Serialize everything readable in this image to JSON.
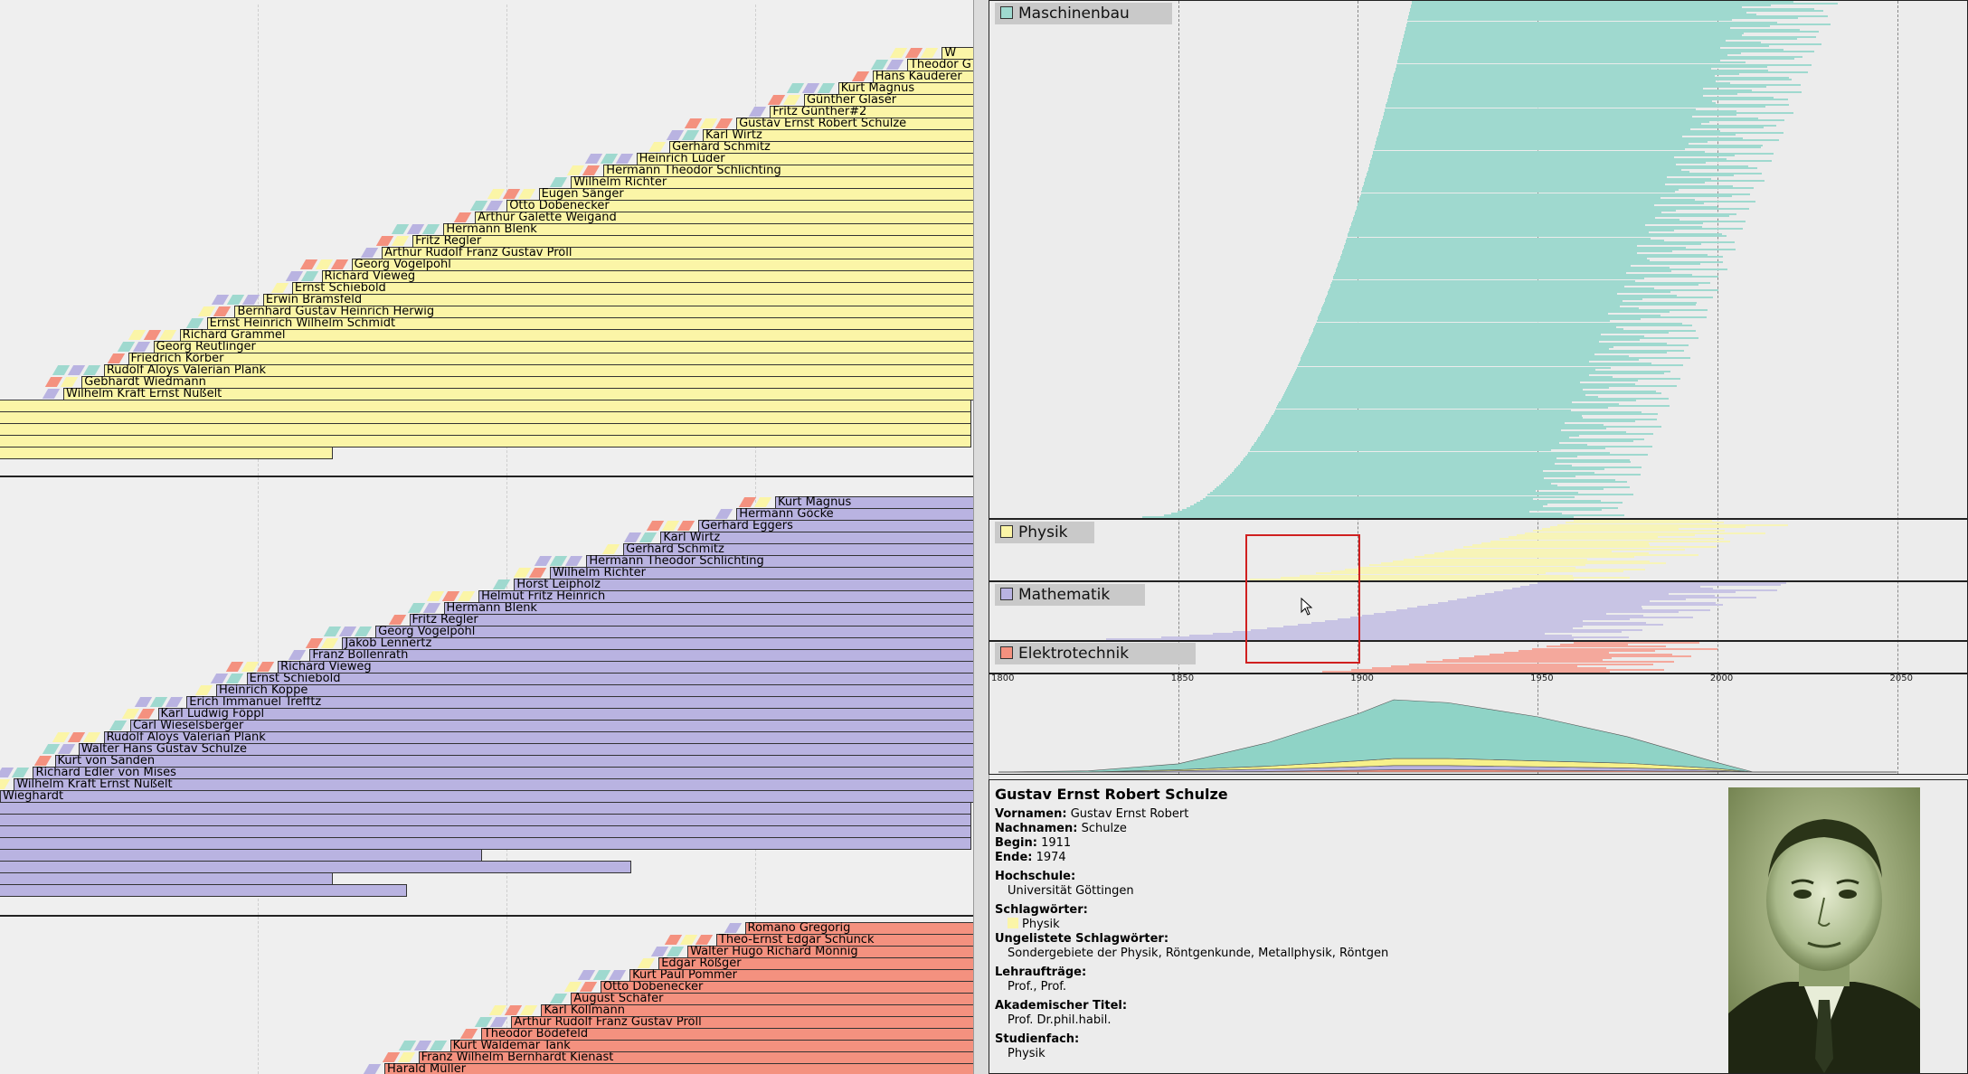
{
  "panels": [
    {
      "key": "physik",
      "color": "#fbf5a7",
      "people": [
        "Wilhelm Kraft Ernst Nußelt",
        "Gebhardt Wiedmann",
        "Rudolf Aloys Valerian Plank",
        "Friedrich Körber",
        "Georg Reutlinger",
        "Richard Grammel",
        "Ernst Heinrich Wilhelm Schmidt",
        "Bernhard Gustav Heinrich Herwig",
        "Erwin Bramsfeld",
        "Ernst Schiebold",
        "Richard Vieweg",
        "Georg Vogelpohl",
        "Arthur Rudolf Franz Gustav Pröll",
        "Fritz Regler",
        "Hermann Blenk",
        "Arthur Galette Weigand",
        "Otto Dobenecker",
        "Eugen Sänger",
        "Wilhelm Richter",
        "Hermann Theodor Schlichting",
        "Heinrich Lüder",
        "Gerhard Schmitz",
        "Karl Wirtz",
        "Gustav Ernst Robert Schulze",
        "Fritz Günther#2",
        "Günther Glaser",
        "Kurt Magnus",
        "Hans Kauderer",
        "Theodor G",
        "W"
      ]
    },
    {
      "key": "mathematik",
      "color": "#b9b3e1",
      "people": [
        "Wieghardt",
        "Wilhelm Kraft Ernst Nußelt",
        "Richard Edler von Mises",
        "Kurt von Sanden",
        "Walter Hans Gustav Schulze",
        "Rudolf Aloys Valerian Plank",
        "Carl Wieselsberger",
        "Karl Ludwig Föppl",
        "Erich Immanuel Trefftz",
        "Heinrich Koppe",
        "Ernst Schiebold",
        "Richard Vieweg",
        "Franz Bollenrath",
        "Jakob Lennertz",
        "Georg Vogelpohl",
        "Fritz Regler",
        "Hermann Blenk",
        "Helmut Fritz Heinrich",
        "Horst Leipholz",
        "Wilhelm Richter",
        "Hermann Theodor Schlichting",
        "Gerhard Schmitz",
        "Karl Wirtz",
        "Gerhard Eggers",
        "Hermann Göcke",
        "Kurt Magnus"
      ]
    },
    {
      "key": "elektrotechnik",
      "color": "#f4917f",
      "people": [
        "Harald Müller",
        "Franz Wilhelm Bernhardt Kienast",
        "Kurt Waldemar Tank",
        "Theodor Bödefeld",
        "Arthur Rudolf Franz Gustav Pröll",
        "Karl Kollmann",
        "August Schäfer",
        "Otto Dobenecker",
        "Kurt Paul Pommer",
        "Edgar Rößger",
        "Walter Hugo Richard Mönnig",
        "Theo-Ernst Edgar Schunck",
        "Romano Gregorig"
      ]
    }
  ],
  "overview": {
    "bands": [
      {
        "label": "Maschinenbau",
        "color": "#9fd9cf"
      },
      {
        "label": "Physik",
        "color": "#f7f4b8"
      },
      {
        "label": "Mathematik",
        "color": "#c8c4e4"
      },
      {
        "label": "Elektrotechnik",
        "color": "#f4a89c"
      }
    ],
    "axis_ticks": [
      "1800",
      "1850",
      "1900",
      "1950",
      "2000",
      "2050"
    ]
  },
  "chart_data": {
    "type": "area",
    "title": "",
    "xlabel": "",
    "ylabel": "",
    "x": [
      1800,
      1825,
      1850,
      1875,
      1900,
      1910,
      1925,
      1950,
      1975,
      2000,
      2010,
      2050
    ],
    "xlim": [
      1800,
      2070
    ],
    "series": [
      {
        "name": "Maschinenbau",
        "values": [
          0,
          2,
          10,
          40,
          80,
          100,
          95,
          75,
          45,
          10,
          0,
          0
        ]
      },
      {
        "name": "Physik",
        "values": [
          0,
          0,
          2,
          5,
          10,
          12,
          12,
          10,
          8,
          3,
          0,
          0
        ]
      },
      {
        "name": "Mathematik",
        "values": [
          0,
          0,
          2,
          4,
          6,
          7,
          7,
          6,
          5,
          2,
          0,
          0
        ]
      },
      {
        "name": "Elektrotechnik",
        "values": [
          0,
          0,
          0,
          1,
          3,
          4,
          4,
          3,
          2,
          1,
          0,
          0
        ]
      }
    ],
    "stacked": true
  },
  "details": {
    "name": "Gustav Ernst Robert Schulze",
    "vornamen_label": "Vornamen:",
    "vornamen": "Gustav Ernst Robert",
    "nachnamen_label": "Nachnamen:",
    "nachnamen": "Schulze",
    "beginn_label": "Begin:",
    "beginn": "1911",
    "ende_label": "Ende:",
    "ende": "1974",
    "hochschule_label": "Hochschule:",
    "hochschule": "Universität Göttingen",
    "schlagwoerter_label": "Schlagwörter:",
    "schlagwort": "Physik",
    "schlagwort_color": "#fbf5a7",
    "ungelistete_label": "Ungelistete Schlagwörter:",
    "ungelistete": "Sondergebiete der Physik, Röntgenkunde, Metallphysik, Röntgen",
    "lehrauftraege_label": "Lehraufträge:",
    "lehrauftraege": "Prof., Prof.",
    "titel_label": "Akademischer Titel:",
    "titel": "Prof. Dr.phil.habil.",
    "studienfach_label": "Studienfach:",
    "studienfach": "Physik"
  }
}
